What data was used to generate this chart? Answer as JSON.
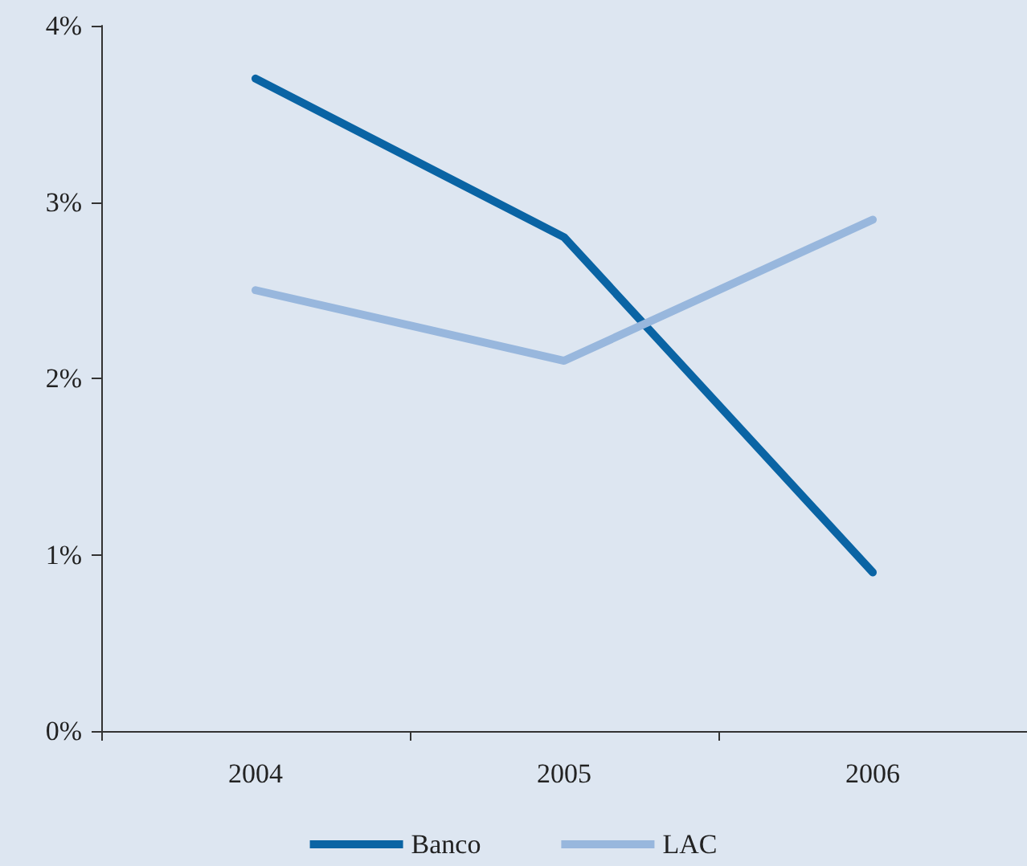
{
  "chart_data": {
    "type": "line",
    "categories": [
      "2004",
      "2005",
      "2006"
    ],
    "series": [
      {
        "name": "Banco",
        "color": "#0a64a4",
        "values": [
          3.7,
          2.8,
          0.9
        ]
      },
      {
        "name": "LAC",
        "color": "#98b7dd",
        "values": [
          2.5,
          2.1,
          2.9
        ]
      }
    ],
    "ylim": [
      0,
      4
    ],
    "yticks": [
      {
        "value": 0,
        "label": "0%"
      },
      {
        "value": 1,
        "label": "1%"
      },
      {
        "value": 2,
        "label": "2%"
      },
      {
        "value": 3,
        "label": "3%"
      },
      {
        "value": 4,
        "label": "4%"
      }
    ],
    "grid": false,
    "legend": "bottom",
    "marker": "none",
    "line_style": "solid"
  }
}
